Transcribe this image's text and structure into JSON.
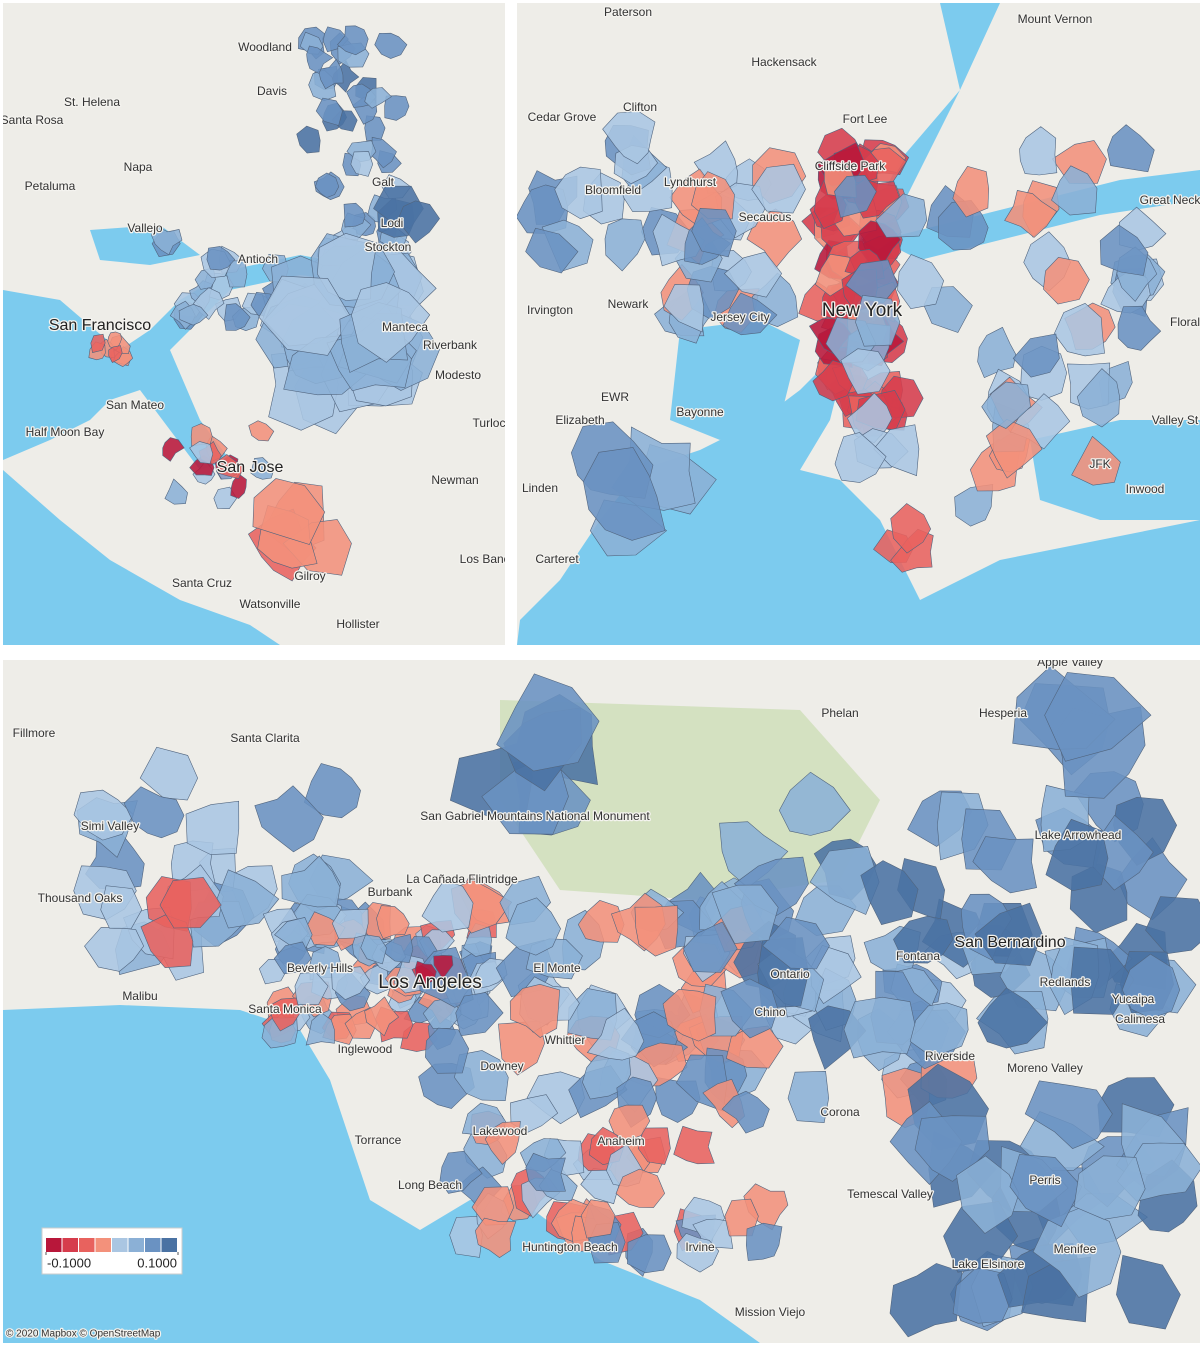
{
  "panels": [
    {
      "labels": [
        "Woodland",
        "Davis",
        "St. Helena",
        "Santa Rosa",
        "Napa",
        "Petaluma",
        "Vallejo",
        "Galt",
        "Lodi",
        "Antioch",
        "Stockton",
        "San Francisco",
        "Manteca",
        "Riverbank",
        "Modesto",
        "San Mateo",
        "Half Moon Bay",
        "San Jose",
        "Turlock",
        "Newman",
        "Los Banos",
        "Santa Cruz",
        "Gilroy",
        "Watsonville",
        "Hollister"
      ]
    },
    {
      "labels": [
        "Paterson",
        "Mount Vernon",
        "Hackensack",
        "Cedar Grove",
        "Clifton",
        "Fort Lee",
        "Cliffside Park",
        "Bloomfield",
        "Lyndhurst",
        "Secaucus",
        "Great Neck",
        "Newark",
        "Irvington",
        "Jersey City",
        "New York",
        "Floral",
        "Elizabeth",
        "EWR",
        "Bayonne",
        "Valley St",
        "JFK",
        "Inwood",
        "Linden",
        "Carteret"
      ]
    },
    {
      "labels": [
        "Fillmore",
        "Santa Clarita",
        "Phelan",
        "Hesperia",
        "Apple Valley",
        "Simi Valley",
        "Lake Arrowhead",
        "San Gabriel Mountains National Monument",
        "Thousand Oaks",
        "La Cañada Flintridge",
        "Burbank",
        "San Bernardino",
        "Fontana",
        "Beverly Hills",
        "Los Angeles",
        "El Monte",
        "Ontario",
        "Redlands",
        "Yucaipa",
        "Calimesa",
        "Malibu",
        "Santa Monica",
        "Inglewood",
        "Whittier",
        "Chino",
        "Riverside",
        "Downey",
        "Moreno Valley",
        "Corona",
        "Torrance",
        "Lakewood",
        "Anaheim",
        "Long Beach",
        "Perris",
        "Temescal Valley",
        "Huntington Beach",
        "Irvine",
        "Lake Elsinore",
        "Menifee",
        "Mission Viejo"
      ]
    }
  ],
  "legend": {
    "colors": [
      "#b8173a",
      "#d63c4c",
      "#e8625e",
      "#f3917b",
      "#aac6e2",
      "#8bb0d6",
      "#6a92c2",
      "#4a72a3"
    ],
    "ticks": [
      {
        "value": -0.1,
        "label": "-0.1000"
      },
      {
        "value": 0.1,
        "label": "0.1000"
      }
    ],
    "lim": [
      -0.1,
      0.1
    ]
  },
  "attribution": "© 2020 Mapbox © OpenStreetMap"
}
